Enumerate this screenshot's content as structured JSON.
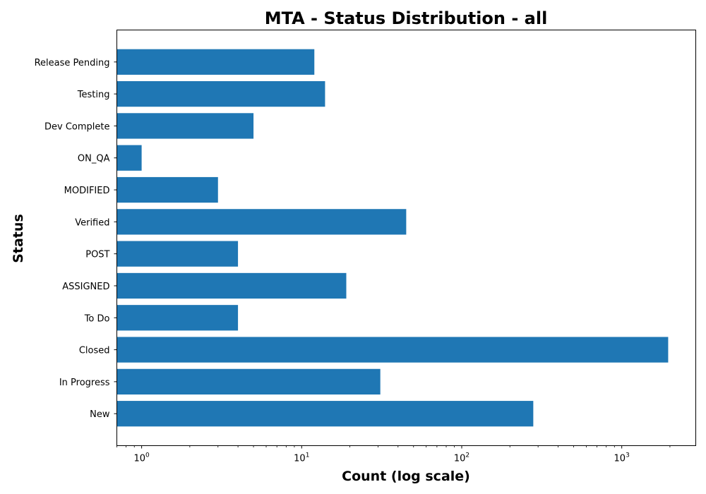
{
  "chart_data": {
    "type": "bar",
    "orientation": "horizontal",
    "title": "MTA - Status Distribution - all",
    "xlabel": "Count (log scale)",
    "ylabel": "Status",
    "x_scale": "log",
    "xlim": [
      0.7,
      2900
    ],
    "x_major_ticks": [
      1,
      10,
      100,
      1000
    ],
    "x_tick_labels": [
      {
        "base": "10",
        "exp": "0"
      },
      {
        "base": "10",
        "exp": "1"
      },
      {
        "base": "10",
        "exp": "2"
      },
      {
        "base": "10",
        "exp": "3"
      }
    ],
    "categories": [
      "New",
      "In Progress",
      "Closed",
      "To Do",
      "ASSIGNED",
      "POST",
      "Verified",
      "MODIFIED",
      "ON_QA",
      "Dev Complete",
      "Testing",
      "Release Pending"
    ],
    "values": [
      280,
      31,
      1950,
      4,
      19,
      4,
      45,
      3,
      1,
      5,
      14,
      12
    ],
    "bar_color": "#1f77b4",
    "grid": false,
    "legend": "none"
  }
}
